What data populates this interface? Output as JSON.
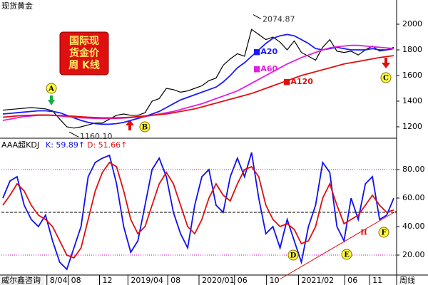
{
  "chart_data": [
    {
      "type": "line",
      "title": "现货黄金",
      "title_box": [
        "国际现",
        "货金价",
        "周 K线"
      ],
      "xlim": [
        -0.2,
        55.4
      ],
      "xticks": [
        {
          "value": 6.6,
          "label": "8/04"
        },
        {
          "value": 9.6,
          "label": "08"
        },
        {
          "value": 14,
          "label": "12"
        },
        {
          "value": 18,
          "label": "2019/04"
        },
        {
          "value": 23.6,
          "label": "08"
        },
        {
          "value": 28,
          "label": "2020/01"
        },
        {
          "value": 33,
          "label": "06"
        },
        {
          "value": 37.5,
          "label": "10"
        },
        {
          "value": 42,
          "label": "2021/02"
        },
        {
          "value": 48.5,
          "label": "06"
        },
        {
          "value": 52,
          "label": "11"
        }
      ],
      "x_left_label": "威尔鑫咨询",
      "x_right_label": "周线",
      "ylim": [
        1122,
        2189
      ],
      "yticks": [
        1200,
        1400,
        1600,
        1800,
        2000
      ],
      "high": 2074.87,
      "low": {
        "value": 1160.1,
        "label": "1160.10"
      },
      "annotations": [
        "A",
        "B",
        "C"
      ],
      "series": [
        {
          "name": "价格",
          "color": "#000000",
          "values": [
            1330,
            1335,
            1340,
            1345,
            1350,
            1345,
            1340,
            1325,
            1260,
            1200,
            1190,
            1200,
            1215,
            1230,
            1230,
            1260,
            1290,
            1300,
            1290,
            1290,
            1310,
            1400,
            1420,
            1500,
            1490,
            1470,
            1480,
            1500,
            1520,
            1560,
            1580,
            1680,
            1730,
            1770,
            1750,
            1960,
            1920,
            1880,
            1900,
            1860,
            1800,
            1870,
            1780,
            1750,
            1720,
            1820,
            1880,
            1790,
            1780,
            1790,
            1760,
            1800,
            1830,
            1790,
            1800,
            1820
          ]
        },
        {
          "name": "■A20",
          "color": "#1a1aff",
          "values": [
            1300,
            1305,
            1310,
            1315,
            1320,
            1325,
            1325,
            1320,
            1310,
            1290,
            1270,
            1250,
            1235,
            1225,
            1220,
            1220,
            1225,
            1235,
            1250,
            1265,
            1280,
            1300,
            1320,
            1350,
            1380,
            1410,
            1430,
            1450,
            1470,
            1490,
            1510,
            1550,
            1600,
            1660,
            1700,
            1750,
            1800,
            1850,
            1890,
            1910,
            1920,
            1910,
            1880,
            1850,
            1810,
            1800,
            1810,
            1820,
            1810,
            1800,
            1800,
            1800,
            1810,
            1800,
            1800,
            1810
          ]
        },
        {
          "name": "■A60",
          "color": "#e020e0",
          "values": [
            1250,
            1260,
            1270,
            1280,
            1285,
            1290,
            1290,
            1290,
            1285,
            1280,
            1275,
            1270,
            1268,
            1266,
            1265,
            1265,
            1266,
            1268,
            1272,
            1276,
            1280,
            1290,
            1300,
            1310,
            1320,
            1335,
            1350,
            1365,
            1380,
            1400,
            1420,
            1440,
            1460,
            1480,
            1510,
            1540,
            1570,
            1600,
            1630,
            1660,
            1690,
            1715,
            1740,
            1760,
            1780,
            1800,
            1815,
            1825,
            1830,
            1835,
            1835,
            1830,
            1825,
            1820,
            1815,
            1810
          ]
        },
        {
          "name": "■A120",
          "color": "#e01010",
          "values": [
            1275,
            1280,
            1285,
            1288,
            1290,
            1292,
            1292,
            1290,
            1288,
            1285,
            1282,
            1278,
            1275,
            1272,
            1270,
            1270,
            1270,
            1272,
            1275,
            1280,
            1285,
            1290,
            1295,
            1300,
            1310,
            1320,
            1330,
            1340,
            1355,
            1370,
            1385,
            1400,
            1415,
            1430,
            1445,
            1460,
            1480,
            1500,
            1520,
            1540,
            1560,
            1580,
            1600,
            1615,
            1630,
            1645,
            1660,
            1675,
            1690,
            1700,
            1710,
            1720,
            1730,
            1740,
            1748,
            1755
          ]
        }
      ]
    },
    {
      "type": "line",
      "title": "AAA超KDJ",
      "xlim": [
        -0.2,
        55.4
      ],
      "ylim": [
        7,
        101
      ],
      "yticks": [
        {
          "value": 20,
          "label": "20.00"
        },
        {
          "value": 40,
          "label": "40.00"
        },
        {
          "value": 60,
          "label": "60.00"
        },
        {
          "value": 80,
          "label": "80.00"
        }
      ],
      "hlines": [
        {
          "value": 80,
          "color": "#c000c0"
        },
        {
          "value": 50,
          "color": "#000000"
        },
        {
          "value": 20,
          "color": "#c000c0"
        }
      ],
      "annotations": [
        "D",
        "E",
        "F",
        "H"
      ],
      "series": [
        {
          "name": "K: 59.89↑",
          "color": "#1010ee",
          "values": [
            60,
            72,
            75,
            55,
            45,
            40,
            48,
            30,
            15,
            10,
            25,
            40,
            75,
            85,
            88,
            90,
            70,
            40,
            22,
            30,
            55,
            80,
            88,
            75,
            50,
            35,
            25,
            55,
            75,
            80,
            55,
            50,
            75,
            88,
            75,
            92,
            60,
            35,
            40,
            25,
            45,
            30,
            15,
            40,
            55,
            85,
            78,
            40,
            30,
            60,
            45,
            70,
            75,
            45,
            48,
            59.89
          ]
        },
        {
          "name": "D: 51.66↑",
          "color": "#dd1010",
          "values": [
            55,
            62,
            70,
            65,
            55,
            48,
            45,
            40,
            30,
            20,
            18,
            25,
            45,
            65,
            78,
            85,
            82,
            65,
            45,
            35,
            40,
            55,
            70,
            78,
            70,
            55,
            40,
            35,
            45,
            60,
            70,
            62,
            58,
            70,
            80,
            82,
            75,
            55,
            45,
            40,
            42,
            38,
            28,
            30,
            40,
            60,
            70,
            55,
            42,
            45,
            48,
            55,
            62,
            55,
            50,
            51.66
          ]
        }
      ]
    }
  ]
}
